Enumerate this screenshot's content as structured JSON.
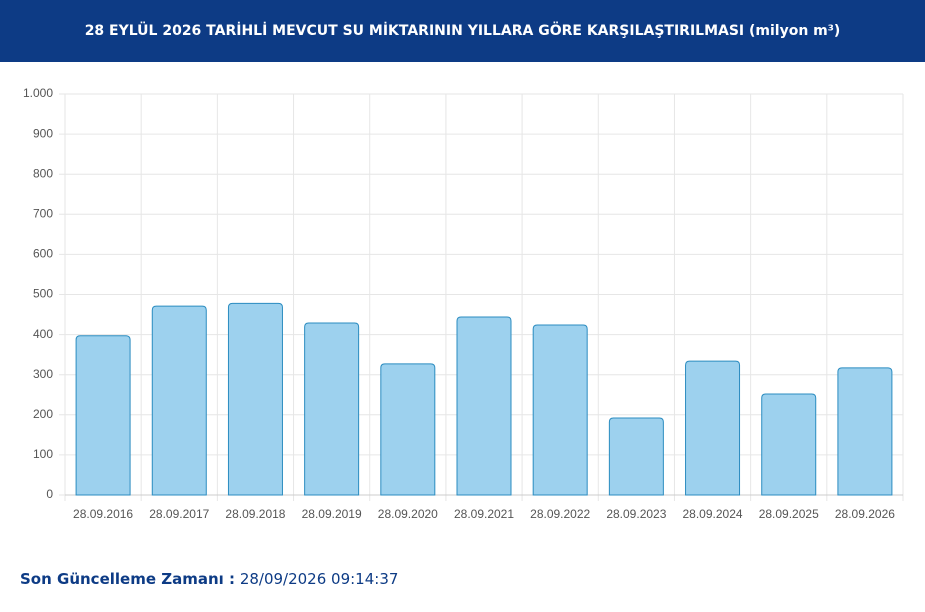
{
  "chart_data": {
    "type": "bar",
    "title": "28 EYLÜL 2026 TARİHLİ MEVCUT SU MİKTARININ YILLARA GÖRE KARŞILAŞTIRILMASI (milyon m³)",
    "categories": [
      "28.09.2016",
      "28.09.2017",
      "28.09.2018",
      "28.09.2019",
      "28.09.2020",
      "28.09.2021",
      "28.09.2022",
      "28.09.2023",
      "28.09.2024",
      "28.09.2025",
      "28.09.2026"
    ],
    "values": [
      397,
      471,
      478,
      429,
      327,
      444,
      424,
      192,
      334,
      252,
      317
    ],
    "color": "#9dd1ee",
    "ylim": [
      0,
      1000
    ],
    "yticks": [
      0,
      100,
      200,
      300,
      400,
      500,
      600,
      700,
      800,
      900,
      {
        "value": 1000,
        "label": "1.000"
      }
    ],
    "grid": true
  },
  "footer": {
    "label": "Son Güncelleme Zamanı :",
    "value": "28/09/2026 09:14:37"
  }
}
